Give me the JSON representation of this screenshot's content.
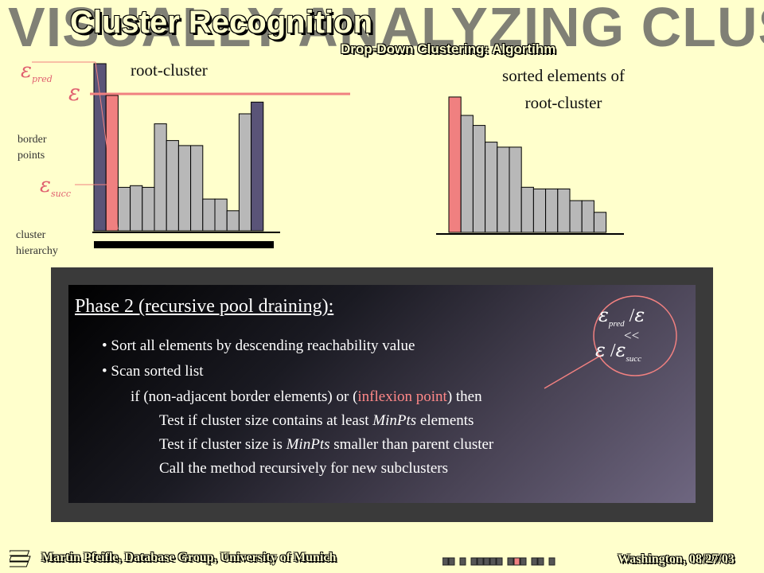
{
  "header": {
    "watermark": "VISUALLY ANALYZING CLUSTER HIERARCHIES",
    "title": "Cluster Recognition",
    "subtitle": "Drop-Down Clustering: Algortihm"
  },
  "left_diagram": {
    "label": "root-cluster",
    "eps_symbol": "ε",
    "eps_pred_sub": "pred",
    "eps_succ_sub": "succ",
    "border_points": [
      "border",
      "points"
    ],
    "cluster_hierarchy": [
      "cluster",
      "hierarchy"
    ],
    "bars": [
      1.0,
      0.81,
      0.26,
      0.27,
      0.26,
      0.64,
      0.54,
      0.51,
      0.51,
      0.19,
      0.19,
      0.12,
      0.7,
      0.77
    ],
    "bar_roles": [
      "border",
      "pred",
      "normal",
      "normal",
      "normal",
      "normal",
      "normal",
      "normal",
      "normal",
      "normal",
      "normal",
      "normal",
      "normal",
      "border"
    ]
  },
  "right_diagram": {
    "label": [
      "sorted elements of",
      "root-cluster"
    ],
    "bars": [
      0.81,
      0.7,
      0.64,
      0.54,
      0.51,
      0.51,
      0.27,
      0.26,
      0.26,
      0.26,
      0.19,
      0.19,
      0.12
    ],
    "bar_roles": [
      "pred",
      "normal",
      "normal",
      "normal",
      "normal",
      "normal",
      "normal",
      "normal",
      "normal",
      "normal",
      "normal",
      "normal",
      "normal"
    ]
  },
  "panel": {
    "phase": "Phase 2 (recursive pool draining):",
    "bullets": [
      "Sort all elements by descending  reachability value",
      "Scan sorted list"
    ],
    "if_pre": "if (non-adjacent border elements) or (",
    "if_hl": "inflexion point",
    "if_post": ") then",
    "test1_pre": "Test if  cluster size contains at least ",
    "test1_em": "MinPts",
    "test1_post": "  elements",
    "test2_pre": "Test if  cluster size is ",
    "test2_em": "MinPts",
    "test2_post": " smaller than parent cluster",
    "call": "Call the method recursively for  new subclusters"
  },
  "relation": {
    "slash": "/",
    "ll": "<<"
  },
  "footer": {
    "left": "Martin Pfeifle, Database Group, University of Munich",
    "right": "Washington, 08/27/03",
    "progress_fraction": 0.62
  },
  "colors": {
    "background": "#FFFFCC",
    "bar_gray": "#B8B8B8",
    "bar_border": "#5A5478",
    "bar_pred": "#F08080",
    "eps_line": "#F08080"
  }
}
